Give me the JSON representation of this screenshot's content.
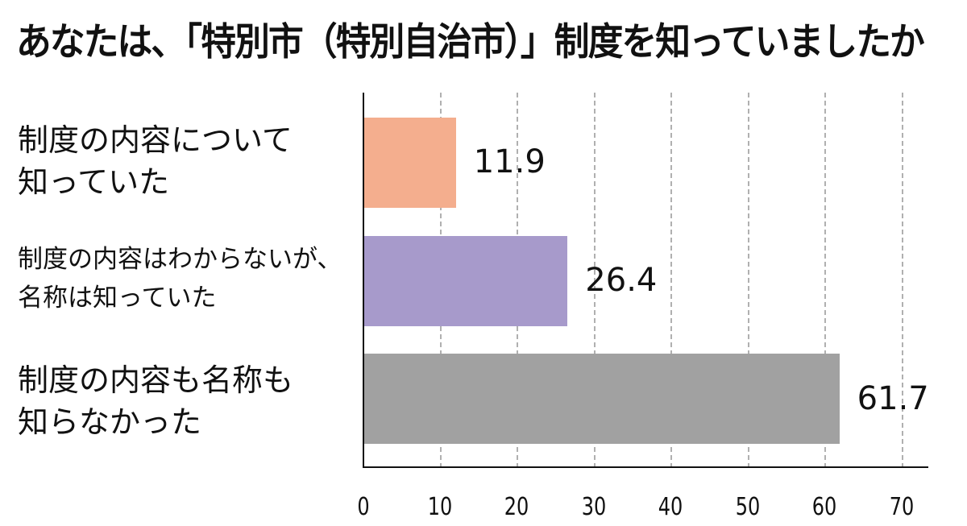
{
  "title": "あなたは、「特別市（特別自治市）」制度を知っていましたか",
  "categories": [
    {
      "label": "制度の内容について\n知っていた",
      "value_label": "11.9",
      "color": "#f4ae8e"
    },
    {
      "label": "制度の内容はわからないが、\n名称は知っていた",
      "value_label": "26.4",
      "color": "#a79acb"
    },
    {
      "label": "制度の内容も名称も\n知らなかった",
      "value_label": "61.7",
      "color": "#a1a1a1"
    }
  ],
  "x_ticks": [
    "0",
    "10",
    "20",
    "30",
    "40",
    "50",
    "60",
    "70"
  ],
  "chart_data": {
    "type": "bar",
    "orientation": "horizontal",
    "title": "あなたは、「特別市（特別自治市）」制度を知っていましたか",
    "categories": [
      "制度の内容について知っていた",
      "制度の内容はわからないが、名称は知っていた",
      "制度の内容も名称も知らなかった"
    ],
    "values": [
      11.9,
      26.4,
      61.7
    ],
    "colors": [
      "#f4ae8e",
      "#a79acb",
      "#a1a1a1"
    ],
    "xlabel": "",
    "ylabel": "",
    "xlim": [
      0,
      70
    ],
    "x_ticks": [
      0,
      10,
      20,
      30,
      40,
      50,
      60,
      70
    ],
    "grid": "vertical dashed",
    "legend": "none",
    "data_labels": true
  }
}
